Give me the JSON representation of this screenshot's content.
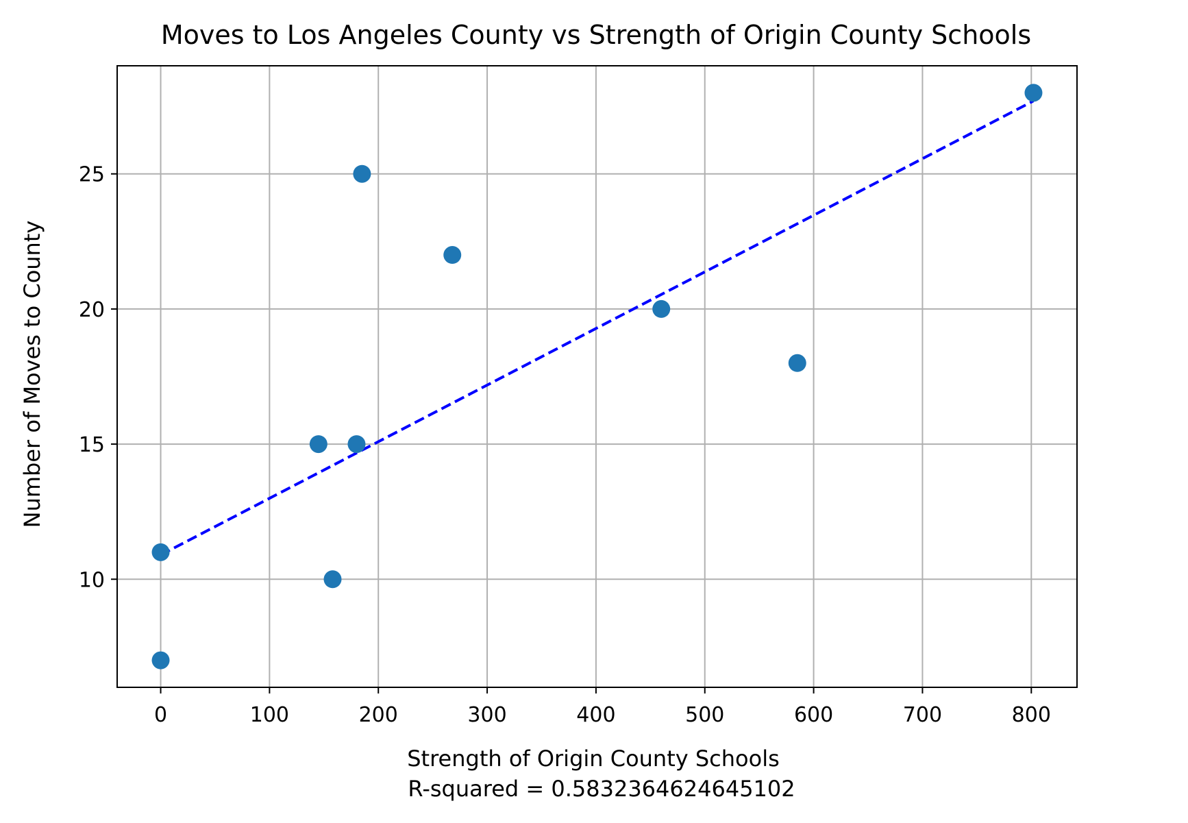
{
  "chart_data": {
    "type": "scatter",
    "title": "Moves to Los Angeles County vs Strength of Origin County Schools",
    "xlabel": "Strength of Origin County Schools",
    "xlabel_line2": "R-squared = 0.583236462464510​2",
    "ylabel": "Number of Moves to County",
    "xlim": [
      -40,
      842
    ],
    "ylim": [
      6.0,
      29.0
    ],
    "xticks": [
      0,
      100,
      200,
      300,
      400,
      500,
      600,
      700,
      800
    ],
    "xtick_labels": [
      "0",
      "100",
      "200",
      "300",
      "400",
      "500",
      "600",
      "700",
      "800"
    ],
    "yticks": [
      10,
      15,
      20,
      25
    ],
    "ytick_labels": [
      "10",
      "15",
      "20",
      "25"
    ],
    "grid": true,
    "series": [
      {
        "points": [
          {
            "x": 0,
            "y": 7
          },
          {
            "x": 0,
            "y": 11
          },
          {
            "x": 145,
            "y": 15
          },
          {
            "x": 158,
            "y": 10
          },
          {
            "x": 180,
            "y": 15
          },
          {
            "x": 185,
            "y": 25
          },
          {
            "x": 268,
            "y": 22
          },
          {
            "x": 460,
            "y": 20
          },
          {
            "x": 585,
            "y": 18
          },
          {
            "x": 802,
            "y": 28
          }
        ],
        "color": "#1f77b4"
      }
    ],
    "fit_line": {
      "x": [
        0,
        802
      ],
      "y": [
        10.9,
        27.7
      ],
      "color": "#0000ff",
      "style": "dashed"
    }
  }
}
